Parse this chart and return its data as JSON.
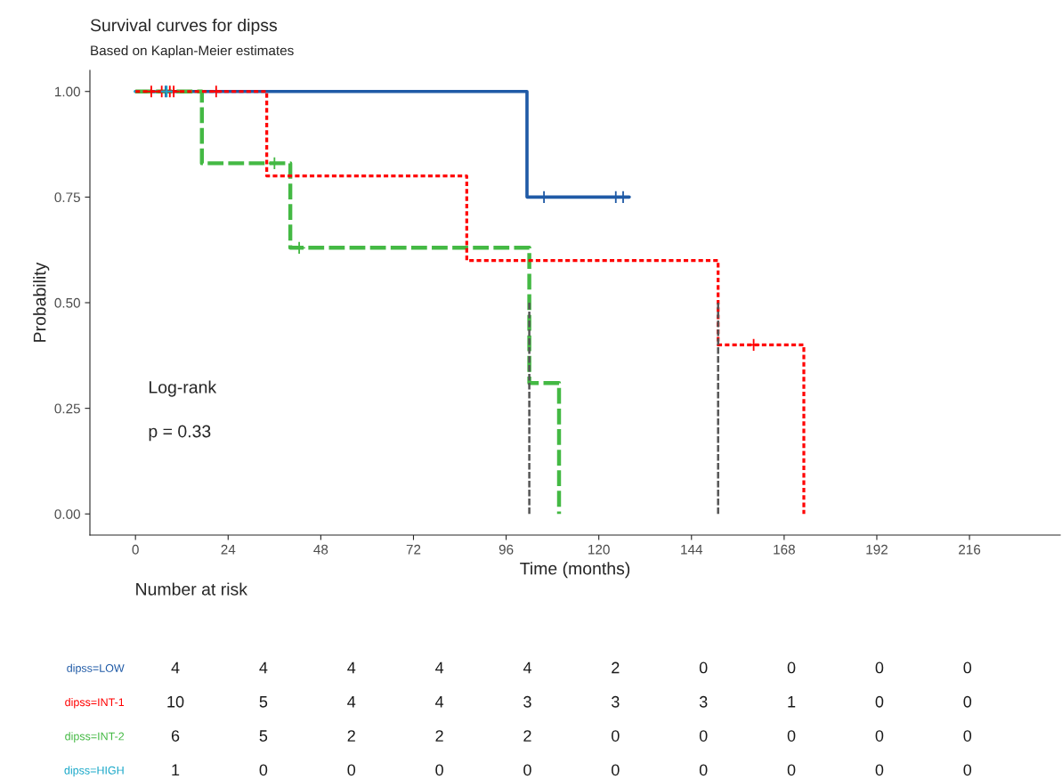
{
  "chart_data": [
    {
      "type": "step",
      "title": "Survival curves for dipss",
      "subtitle": "Based on Kaplan-Meier estimates",
      "xlabel": "Time (months)",
      "ylabel": "Probability",
      "xlim": [
        -11.8,
        239.5
      ],
      "ylim": [
        -0.05,
        1.05
      ],
      "xticks": [
        0,
        24,
        48,
        72,
        96,
        120,
        144,
        168,
        192,
        216
      ],
      "yticks": [
        {
          "value": 0,
          "label": "0.00"
        },
        {
          "value": 0.25,
          "label": "0.25"
        },
        {
          "value": 0.5,
          "label": "0.50"
        },
        {
          "value": 0.75,
          "label": "0.75"
        },
        {
          "value": 1,
          "label": "1.00"
        }
      ],
      "grid": false,
      "legend": false,
      "annotations": [
        "Log-rank",
        "p = 0.33"
      ],
      "series": [
        {
          "type": "step",
          "color": "#1f5aa6",
          "line_style": "solid",
          "x": [
            0,
            101.4,
            101.4,
            127.9
          ],
          "values": [
            1,
            1,
            0.75,
            0.75
          ]
        },
        {
          "type": "step",
          "color": "#ff0000",
          "line_style": "dotted",
          "x": [
            0,
            34,
            34,
            85.8,
            85.8,
            150.9,
            150.9,
            173.1,
            173.1
          ],
          "values": [
            1,
            1,
            0.8,
            0.8,
            0.6,
            0.6,
            0.4,
            0.4,
            0
          ]
        },
        {
          "type": "step",
          "color": "#44b944",
          "line_style": "dashed",
          "x": [
            0,
            17.2,
            17.2,
            40.1,
            40.1,
            102,
            102,
            109.7,
            109.7
          ],
          "values": [
            1,
            1,
            0.83,
            0.83,
            0.63,
            0.63,
            0.31,
            0.31,
            0
          ]
        },
        {
          "type": "step",
          "color": "#17a7c8",
          "line_style": "solid",
          "x": [
            0,
            8.1
          ],
          "values": [
            1,
            1
          ]
        },
        {
          "type": "line",
          "color": "#555555",
          "line_style": "dashed",
          "x": [
            102,
            102
          ],
          "values": [
            0.5,
            0
          ]
        },
        {
          "type": "line",
          "color": "#555555",
          "line_style": "dashed",
          "x": [
            150.9,
            150.9
          ],
          "values": [
            0.5,
            0
          ]
        },
        {
          "type": "scatter",
          "marker": "cross",
          "color": "#1f5aa6",
          "x": [
            7.8,
            105.8,
            124.4,
            126.3
          ],
          "values": [
            1,
            0.75,
            0.75,
            0.75
          ]
        },
        {
          "type": "scatter",
          "marker": "cross",
          "color": "#ff0000",
          "x": [
            4.1,
            6.8,
            8.9,
            9.9,
            20.9,
            160.1
          ],
          "values": [
            1,
            1,
            1,
            1,
            1,
            0.4
          ]
        },
        {
          "type": "scatter",
          "marker": "cross",
          "color": "#44b944",
          "x": [
            36,
            42.4
          ],
          "values": [
            0.83,
            0.63
          ]
        },
        {
          "type": "scatter",
          "marker": "cross",
          "color": "#17a7c8",
          "x": [
            8.1
          ],
          "values": [
            1
          ]
        }
      ]
    },
    {
      "type": "other",
      "title": "Number at risk",
      "categories": [
        null,
        null,
        null,
        null,
        null,
        null,
        null,
        null,
        null,
        null
      ],
      "y_categories": [
        "dipss=LOW",
        "dipss=INT-1",
        "dipss=INT-2",
        "dipss=HIGH"
      ],
      "colors": [
        "#1f5aa6",
        "#ff0000",
        "#44b944",
        "#17a7c8"
      ],
      "cell_labels": [
        [
          "4",
          "4",
          "4",
          "4",
          "4",
          "2",
          "0",
          "0",
          "0",
          "0"
        ],
        [
          "10",
          "5",
          "4",
          "4",
          "3",
          "3",
          "3",
          "1",
          "0",
          "0"
        ],
        [
          "6",
          "5",
          "2",
          "2",
          "2",
          "0",
          "0",
          "0",
          "0",
          "0"
        ],
        [
          "1",
          "0",
          "0",
          "0",
          "0",
          "0",
          "0",
          "0",
          "0",
          "0"
        ]
      ]
    }
  ]
}
